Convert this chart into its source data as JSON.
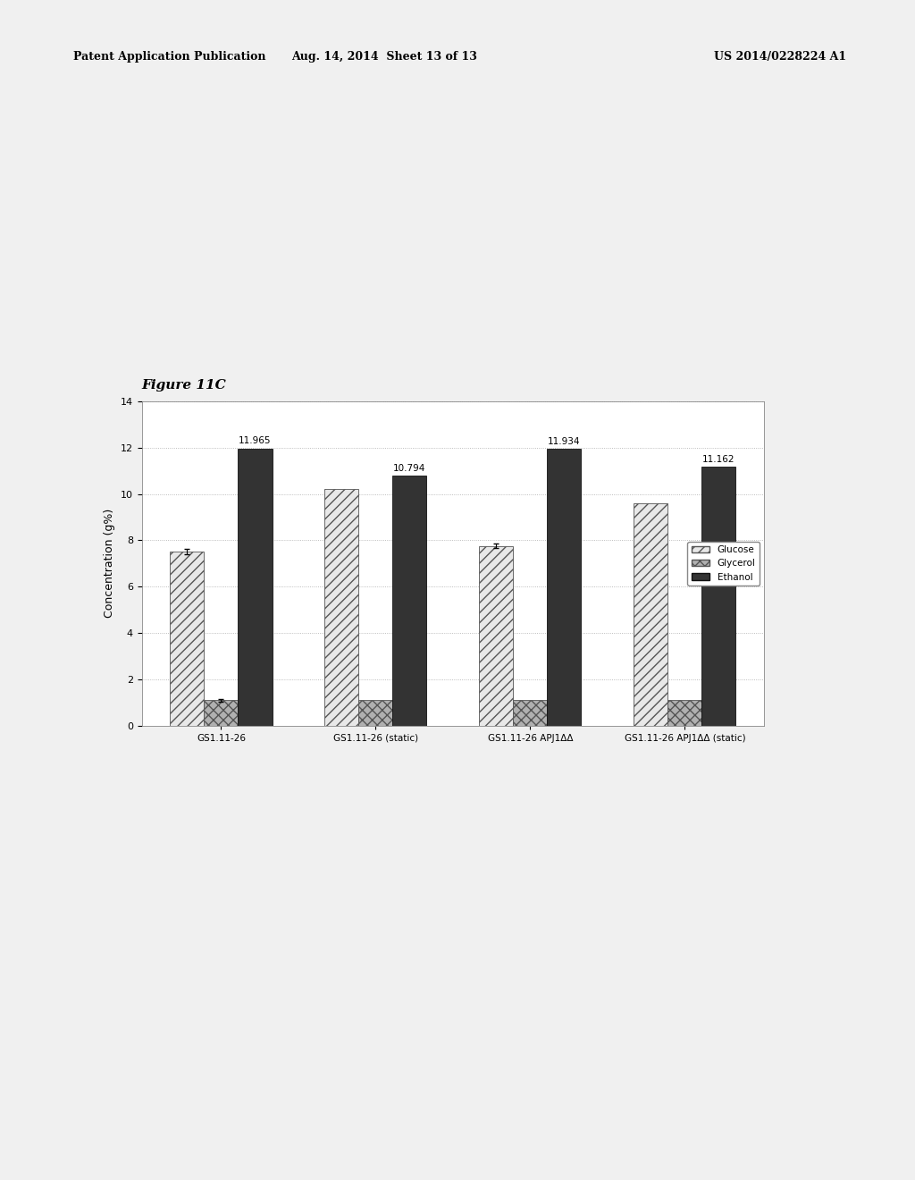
{
  "groups": [
    "GS1.11-26",
    "GS1.11-26 (static)",
    "GS1.11-26 APJ1ΔΔ",
    "GS1.11-26 APJ1ΔΔ (static)"
  ],
  "glucose_values": [
    7.5,
    10.2,
    7.75,
    9.6
  ],
  "glycerol_values": [
    1.1,
    1.1,
    1.1,
    1.1
  ],
  "ethanol_values": [
    11.965,
    10.794,
    11.934,
    11.162
  ],
  "ethanol_labels": [
    "11.965",
    "10.794",
    "11.934",
    "11.162"
  ],
  "glucose_errors": [
    0.12,
    0,
    0.1,
    0
  ],
  "glycerol_errors": [
    0.05,
    0,
    0,
    0
  ],
  "ylim": [
    0,
    14
  ],
  "yticks": [
    0,
    2,
    4,
    6,
    8,
    10,
    12,
    14
  ],
  "ylabel": "Concentration (g%)",
  "figure_label": "Figure 11C",
  "bar_width": 0.22,
  "background_color": "#f0f0f0",
  "plot_bg_color": "#ffffff",
  "grid_color": "#aaaaaa",
  "header_left": "Patent Application Publication",
  "header_mid": "Aug. 14, 2014  Sheet 13 of 13",
  "header_right": "US 2014/0228224 A1"
}
